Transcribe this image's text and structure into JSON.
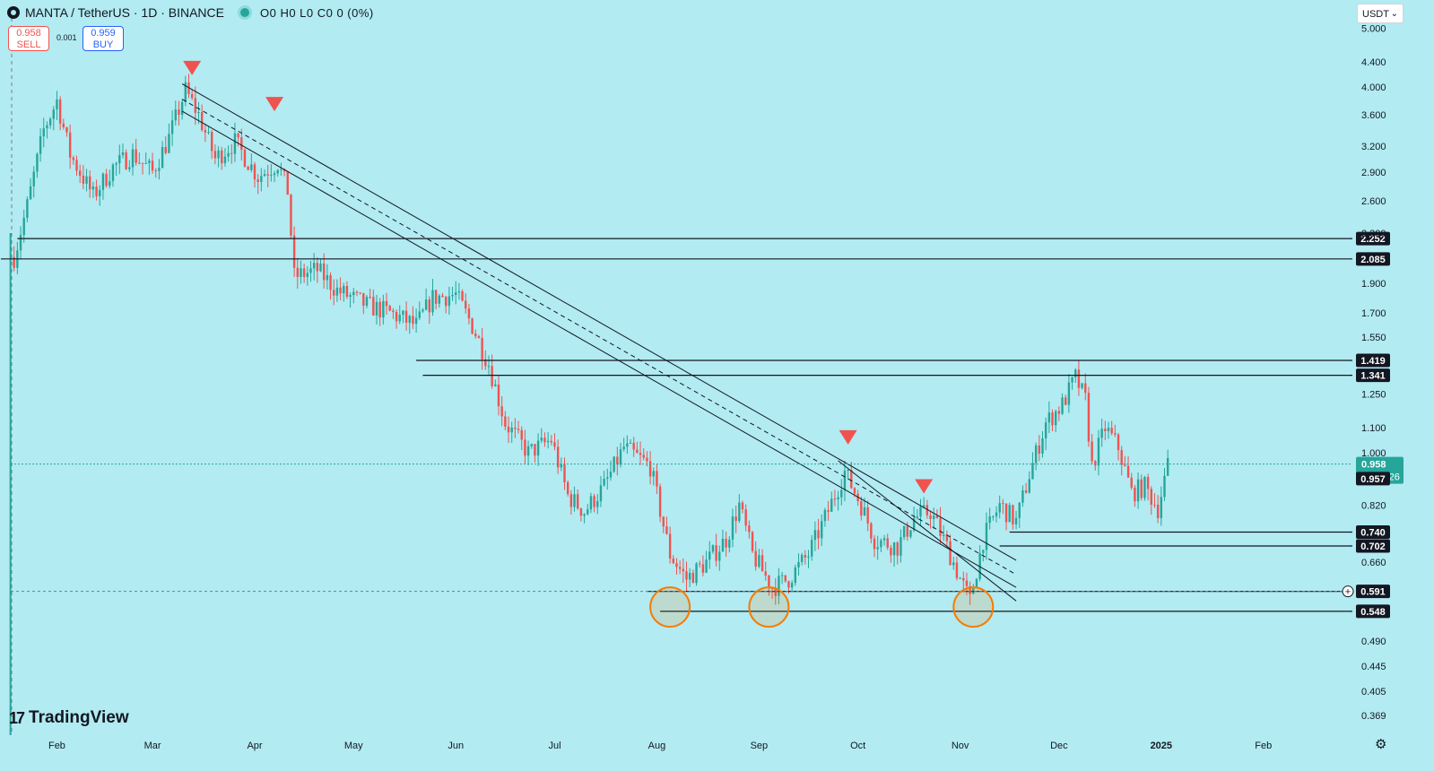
{
  "header": {
    "symbol": "MANTA / TetherUS · 1D · BINANCE",
    "ohlc": "O0 H0 L0 C0 0 (0%)",
    "icon": "coin-logo-icon"
  },
  "trade": {
    "sell_price": "0.958",
    "sell_label": "SELL",
    "spread": "0.001",
    "buy_price": "0.959",
    "buy_label": "BUY"
  },
  "currency": {
    "value": "USDT",
    "chevron": "⌄"
  },
  "branding": {
    "mark": "17",
    "name": "TradingView"
  },
  "settings_icon": "gear-icon",
  "colors": {
    "background": "#b2ebf2",
    "up": "#26a69a",
    "down": "#ef5350",
    "channel": "#131722",
    "marker": "#ef5350",
    "circle": "#f57c00"
  },
  "chart_data": {
    "type": "candlestick",
    "title": "MANTA / TetherUS · 1D · BINANCE",
    "y_scale": "log",
    "ylim": [
      0.345,
      5.2
    ],
    "y_ticks": [
      "5.000",
      "4.400",
      "4.000",
      "3.600",
      "3.200",
      "2.900",
      "2.600",
      "2.300",
      "1.900",
      "1.700",
      "1.550",
      "1.250",
      "1.100",
      "1.000",
      "0.820",
      "0.660",
      "0.490",
      "0.445",
      "0.405",
      "0.369"
    ],
    "x_start": "2024-01-18",
    "x_end": "2025-02-28",
    "x_ticks": [
      {
        "date": "2024-02-01",
        "label": "Feb"
      },
      {
        "date": "2024-03-01",
        "label": "Mar"
      },
      {
        "date": "2024-04-01",
        "label": "Apr"
      },
      {
        "date": "2024-05-01",
        "label": "May"
      },
      {
        "date": "2024-06-01",
        "label": "Jun"
      },
      {
        "date": "2024-07-01",
        "label": "Jul"
      },
      {
        "date": "2024-08-01",
        "label": "Aug"
      },
      {
        "date": "2024-09-01",
        "label": "Sep"
      },
      {
        "date": "2024-10-01",
        "label": "Oct"
      },
      {
        "date": "2024-11-01",
        "label": "Nov"
      },
      {
        "date": "2024-12-01",
        "label": "Dec"
      },
      {
        "date": "2025-01-01",
        "label": "2025"
      },
      {
        "date": "2025-02-01",
        "label": "Feb"
      }
    ],
    "price_path": [
      [
        "2024-01-19",
        2.1
      ],
      [
        "2024-01-23",
        2.55
      ],
      [
        "2024-01-28",
        3.4
      ],
      [
        "2024-02-01",
        3.8
      ],
      [
        "2024-02-05",
        3.1
      ],
      [
        "2024-02-12",
        2.65
      ],
      [
        "2024-02-18",
        2.95
      ],
      [
        "2024-02-24",
        3.1
      ],
      [
        "2024-03-01",
        2.9
      ],
      [
        "2024-03-06",
        3.3
      ],
      [
        "2024-03-11",
        3.95
      ],
      [
        "2024-03-15",
        3.6
      ],
      [
        "2024-03-20",
        3.05
      ],
      [
        "2024-03-26",
        3.25
      ],
      [
        "2024-04-02",
        2.85
      ],
      [
        "2024-04-08",
        3.0
      ],
      [
        "2024-04-11",
        2.7
      ],
      [
        "2024-04-13",
        1.95
      ],
      [
        "2024-04-20",
        2.0
      ],
      [
        "2024-04-26",
        1.85
      ],
      [
        "2024-05-05",
        1.75
      ],
      [
        "2024-05-12",
        1.7
      ],
      [
        "2024-05-20",
        1.62
      ],
      [
        "2024-05-25",
        1.8
      ],
      [
        "2024-06-01",
        1.82
      ],
      [
        "2024-06-06",
        1.62
      ],
      [
        "2024-06-11",
        1.4
      ],
      [
        "2024-06-16",
        1.12
      ],
      [
        "2024-06-23",
        1.0
      ],
      [
        "2024-06-30",
        1.05
      ],
      [
        "2024-07-05",
        0.85
      ],
      [
        "2024-07-10",
        0.8
      ],
      [
        "2024-07-16",
        0.88
      ],
      [
        "2024-07-22",
        1.02
      ],
      [
        "2024-07-30",
        0.95
      ],
      [
        "2024-08-05",
        0.68
      ],
      [
        "2024-08-10",
        0.62
      ],
      [
        "2024-08-16",
        0.66
      ],
      [
        "2024-08-22",
        0.72
      ],
      [
        "2024-08-26",
        0.82
      ],
      [
        "2024-08-30",
        0.68
      ],
      [
        "2024-09-05",
        0.6
      ],
      [
        "2024-09-10",
        0.62
      ],
      [
        "2024-09-16",
        0.68
      ],
      [
        "2024-09-21",
        0.78
      ],
      [
        "2024-09-27",
        0.93
      ],
      [
        "2024-10-02",
        0.82
      ],
      [
        "2024-10-06",
        0.72
      ],
      [
        "2024-10-13",
        0.7
      ],
      [
        "2024-10-18",
        0.78
      ],
      [
        "2024-10-23",
        0.8
      ],
      [
        "2024-10-28",
        0.7
      ],
      [
        "2024-11-01",
        0.62
      ],
      [
        "2024-11-04",
        0.57
      ],
      [
        "2024-11-08",
        0.72
      ],
      [
        "2024-11-13",
        0.82
      ],
      [
        "2024-11-18",
        0.77
      ],
      [
        "2024-11-22",
        0.92
      ],
      [
        "2024-11-27",
        1.12
      ],
      [
        "2024-12-02",
        1.2
      ],
      [
        "2024-12-06",
        1.33
      ],
      [
        "2024-12-09",
        1.22
      ],
      [
        "2024-12-11",
        0.95
      ],
      [
        "2024-12-15",
        1.1
      ],
      [
        "2024-12-19",
        1.02
      ],
      [
        "2024-12-23",
        0.86
      ],
      [
        "2024-12-27",
        0.88
      ],
      [
        "2024-12-31",
        0.81
      ],
      [
        "2025-01-03",
        0.95
      ]
    ],
    "horizontal_levels": [
      {
        "value": 2.252,
        "label": "2.252",
        "from": "2024-01-20"
      },
      {
        "value": 2.085,
        "label": "2.085",
        "from": "2024-01-15"
      },
      {
        "value": 1.419,
        "label": "1.419",
        "from": "2024-05-20"
      },
      {
        "value": 1.341,
        "label": "1.341",
        "from": "2024-05-22"
      },
      {
        "value": 0.74,
        "label": "0.740",
        "from": "2024-11-16"
      },
      {
        "value": 0.702,
        "label": "0.702",
        "from": "2024-11-13"
      },
      {
        "value": 0.591,
        "label": "0.591",
        "from": "2024-07-29",
        "shaded": true
      },
      {
        "value": 0.548,
        "label": "0.548",
        "from": "2024-08-02"
      }
    ],
    "current_price": {
      "value": 0.958,
      "label": "0.958",
      "countdown": "14:28:26"
    },
    "prev_close": {
      "value": 0.957,
      "label": "0.957"
    },
    "channel": {
      "upper": [
        [
          "2024-03-10",
          4.05
        ],
        [
          "2024-11-18",
          0.665
        ]
      ],
      "mid": [
        [
          "2024-03-10",
          3.82
        ],
        [
          "2024-11-18",
          0.63
        ]
      ],
      "lower": [
        [
          "2024-03-10",
          3.65
        ],
        [
          "2024-11-18",
          0.6
        ]
      ]
    },
    "markers": [
      {
        "date": "2024-03-13",
        "value": 4.3,
        "shape": "triangle-down"
      },
      {
        "date": "2024-04-07",
        "value": 3.75,
        "shape": "triangle-down"
      },
      {
        "date": "2024-09-28",
        "value": 1.06,
        "shape": "triangle-down"
      },
      {
        "date": "2024-10-21",
        "value": 0.88,
        "shape": "triangle-down"
      }
    ],
    "circles": [
      {
        "date": "2024-08-05",
        "value": 0.557
      },
      {
        "date": "2024-09-04",
        "value": 0.557
      },
      {
        "date": "2024-11-05",
        "value": 0.557
      }
    ]
  }
}
